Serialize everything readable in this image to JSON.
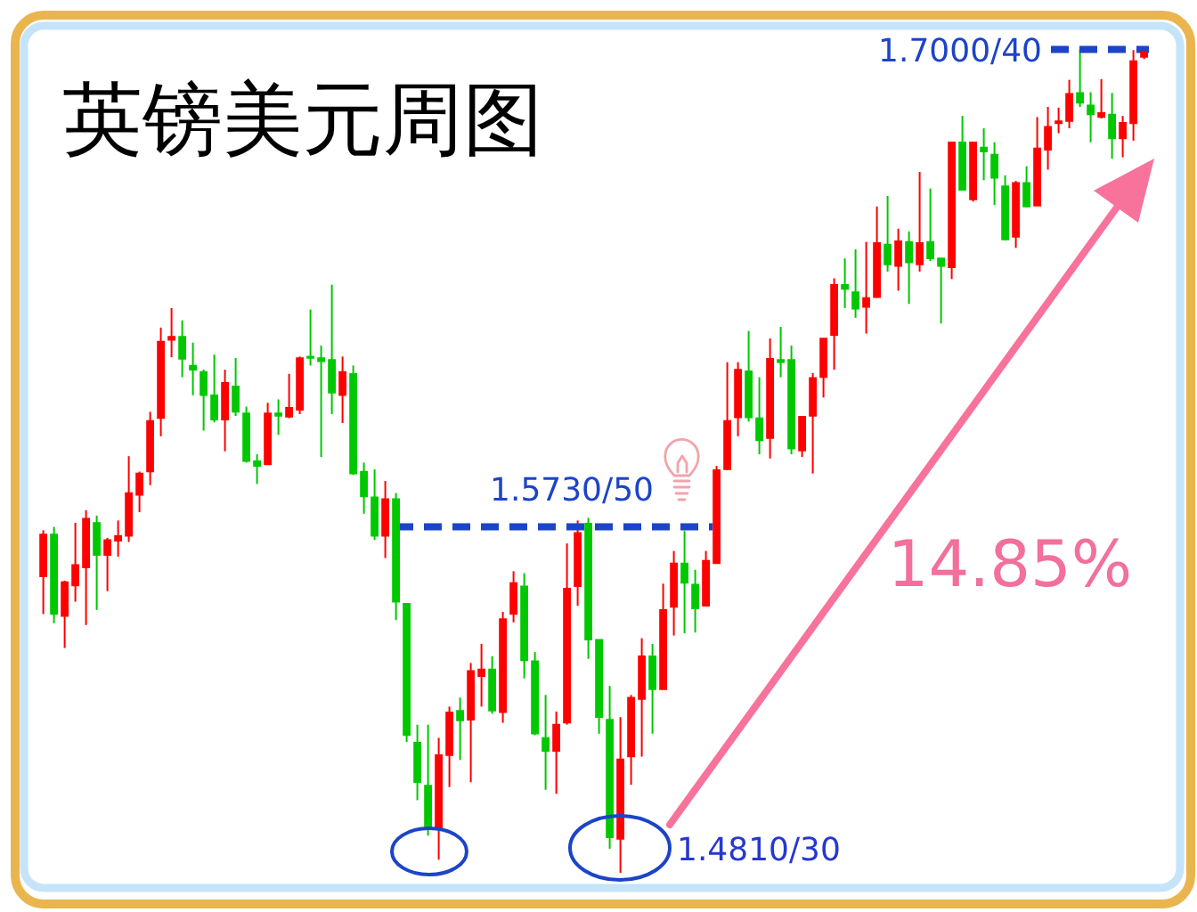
{
  "chart_data": {
    "type": "candlestick",
    "title": "英镑美元周图",
    "categories": [
      null,
      null,
      null,
      null,
      null,
      null,
      null,
      null,
      null,
      null,
      null,
      null,
      null,
      null,
      null,
      null,
      null,
      null,
      null,
      null,
      null,
      null,
      null,
      null,
      null,
      null,
      null,
      null,
      null,
      null,
      null,
      null,
      null,
      null,
      null,
      null,
      null,
      null,
      null,
      null,
      null,
      null,
      null,
      null,
      null,
      null,
      null,
      null,
      null,
      null,
      null,
      null,
      null,
      null,
      null,
      null,
      null,
      null,
      null,
      null,
      null,
      null,
      null,
      null,
      null,
      null,
      null,
      null,
      null,
      null,
      null,
      null,
      null,
      null,
      null,
      null,
      null,
      null,
      null,
      null,
      null,
      null,
      null,
      null,
      null,
      null,
      null,
      null,
      null,
      null,
      null,
      null,
      null,
      null,
      null,
      null,
      null,
      null,
      null,
      null,
      null,
      null,
      null,
      null
    ],
    "ohlc": [
      [
        1.5598,
        1.5721,
        1.5498,
        1.571
      ],
      [
        1.571,
        1.573,
        1.5474,
        1.5498
      ],
      [
        1.5493,
        1.5587,
        1.5408,
        1.5583
      ],
      [
        1.5574,
        1.5741,
        1.5531,
        1.5629
      ],
      [
        1.5622,
        1.5774,
        1.5469,
        1.5752
      ],
      [
        1.5741,
        1.576,
        1.5509,
        1.5655
      ],
      [
        1.5655,
        1.5701,
        1.5559,
        1.5695
      ],
      [
        1.5693,
        1.5747,
        1.5651,
        1.5706
      ],
      [
        1.5706,
        1.5918,
        1.569,
        1.582
      ],
      [
        1.5815,
        1.5877,
        1.5769,
        1.5872
      ],
      [
        1.5877,
        1.6036,
        1.5841,
        1.6012
      ],
      [
        1.6019,
        1.626,
        1.5971,
        1.6223
      ],
      [
        1.6227,
        1.6312,
        1.6181,
        1.6236
      ],
      [
        1.6236,
        1.6279,
        1.6128,
        1.6177
      ],
      [
        1.6159,
        1.622,
        1.608,
        1.6148
      ],
      [
        1.6142,
        1.6148,
        1.5986,
        1.608
      ],
      [
        1.608,
        1.6188,
        1.6008,
        1.6015
      ],
      [
        1.6015,
        1.6148,
        1.5931,
        1.6113
      ],
      [
        1.6104,
        1.6179,
        1.6025,
        1.6036
      ],
      [
        1.6032,
        1.605,
        1.5901,
        1.5905
      ],
      [
        1.5905,
        1.5923,
        1.5844,
        1.5892
      ],
      [
        1.5896,
        1.606,
        1.5896,
        1.6032
      ],
      [
        1.6032,
        1.6069,
        1.5975,
        1.6025
      ],
      [
        1.6023,
        1.6137,
        1.6019,
        1.6047
      ],
      [
        1.6041,
        1.6183,
        1.603,
        1.6179
      ],
      [
        1.6183,
        1.6308,
        1.6159,
        1.6179
      ],
      [
        1.6179,
        1.6212,
        1.5916,
        1.617
      ],
      [
        1.6174,
        1.6374,
        1.603,
        1.6087
      ],
      [
        1.608,
        1.6183,
        1.6006,
        1.6142
      ],
      [
        1.6137,
        1.6159,
        1.5868,
        1.5872
      ],
      [
        1.5877,
        1.5901,
        1.5765,
        1.5811
      ],
      [
        1.5809,
        1.5883,
        1.5695,
        1.5706
      ],
      [
        1.5706,
        1.5852,
        1.5647,
        1.5804
      ],
      [
        1.5804,
        1.582,
        1.5482,
        1.5531
      ],
      [
        1.5526,
        1.5526,
        1.5158,
        1.5176
      ],
      [
        1.5156,
        1.5204,
        1.5003,
        1.5051
      ],
      [
        1.5042,
        1.5204,
        1.4909,
        1.4933
      ],
      [
        1.4926,
        1.5169,
        1.4845,
        1.5123
      ],
      [
        1.5123,
        1.5252,
        1.5038,
        1.5237
      ],
      [
        1.5241,
        1.5276,
        1.511,
        1.5215
      ],
      [
        1.5217,
        1.5368,
        1.5051,
        1.5347
      ],
      [
        1.5333,
        1.5419,
        1.5252,
        1.5351
      ],
      [
        1.5351,
        1.5386,
        1.5233,
        1.5241
      ],
      [
        1.5237,
        1.5504,
        1.5209,
        1.5485
      ],
      [
        1.5498,
        1.5612,
        1.5476,
        1.5581
      ],
      [
        1.5572,
        1.5607,
        1.5327,
        1.5375
      ],
      [
        1.5373,
        1.5397,
        1.5176,
        1.518
      ],
      [
        1.5169,
        1.5283,
        1.5031,
        1.5134
      ],
      [
        1.5134,
        1.5239,
        1.502,
        1.5204
      ],
      [
        1.5209,
        1.5686,
        1.5204,
        1.5566
      ],
      [
        1.5572,
        1.5747,
        1.552,
        1.5714
      ],
      [
        1.5739,
        1.5754,
        1.5379,
        1.543
      ],
      [
        1.543,
        1.543,
        1.518,
        1.5224
      ],
      [
        1.5217,
        1.5307,
        1.4874,
        1.4904
      ],
      [
        1.49,
        1.5224,
        1.481,
        1.5112
      ],
      [
        1.5119,
        1.5283,
        1.5044,
        1.5276
      ],
      [
        1.5272,
        1.5434,
        1.5119,
        1.5386
      ],
      [
        1.5386,
        1.5419,
        1.518,
        1.5298
      ],
      [
        1.5298,
        1.5579,
        1.5298,
        1.5509
      ],
      [
        1.5517,
        1.5666,
        1.5441,
        1.5633
      ],
      [
        1.5633,
        1.5719,
        1.5447,
        1.5581
      ],
      [
        1.5577,
        1.5616,
        1.5449,
        1.5513
      ],
      [
        1.552,
        1.5666,
        1.552,
        1.564
      ],
      [
        1.5633,
        1.5892,
        1.5633,
        1.5881
      ],
      [
        1.5883,
        1.6168,
        1.5881,
        1.6012
      ],
      [
        1.6021,
        1.6168,
        1.5971,
        1.6148
      ],
      [
        1.6144,
        1.6251,
        1.601,
        1.6021
      ],
      [
        1.6019,
        1.6128,
        1.5923,
        1.596
      ],
      [
        1.5966,
        1.6231,
        1.5912,
        1.6177
      ],
      [
        1.6174,
        1.6262,
        1.6128,
        1.6168
      ],
      [
        1.6174,
        1.6212,
        1.5923,
        1.5938
      ],
      [
        1.5933,
        1.6025,
        1.5916,
        1.6023
      ],
      [
        1.6025,
        1.6139,
        1.5872,
        1.6126
      ],
      [
        1.6128,
        1.6231,
        1.6074,
        1.6231
      ],
      [
        1.624,
        1.6391,
        1.6148,
        1.6374
      ],
      [
        1.6374,
        1.6444,
        1.6312,
        1.6363
      ],
      [
        1.6354,
        1.6468,
        1.6286,
        1.631
      ],
      [
        1.6315,
        1.6488,
        1.6244,
        1.6339
      ],
      [
        1.6341,
        1.6582,
        1.6339,
        1.6485
      ],
      [
        1.6481,
        1.661,
        1.6409,
        1.6428
      ],
      [
        1.6424,
        1.6523,
        1.6358,
        1.649
      ],
      [
        1.6488,
        1.6516,
        1.6323,
        1.6433
      ],
      [
        1.6428,
        1.6674,
        1.6409,
        1.6485
      ],
      [
        1.6488,
        1.663,
        1.6437,
        1.6444
      ],
      [
        1.6444,
        1.6444,
        1.6271,
        1.6424
      ],
      [
        1.642,
        1.6753,
        1.6389,
        1.6753
      ],
      [
        1.6753,
        1.6823,
        1.6626,
        1.6626
      ],
      [
        1.6601,
        1.6753,
        1.6595,
        1.6753
      ],
      [
        1.6739,
        1.679,
        1.6652,
        1.6728
      ],
      [
        1.672,
        1.6753,
        1.6586,
        1.6658
      ],
      [
        1.6636,
        1.6665,
        1.6492,
        1.6494
      ],
      [
        1.6501,
        1.665,
        1.6472,
        1.6645
      ],
      [
        1.6645,
        1.6689,
        1.658,
        1.6582
      ],
      [
        1.6584,
        1.682,
        1.6584,
        1.6737
      ],
      [
        1.6733,
        1.6847,
        1.668,
        1.6794
      ],
      [
        1.6803,
        1.6845,
        1.6777,
        1.6809
      ],
      [
        1.6809,
        1.6919,
        1.679,
        1.6882
      ],
      [
        1.6884,
        1.7,
        1.6847,
        1.6858
      ],
      [
        1.6851,
        1.6886,
        1.6753,
        1.6827
      ],
      [
        1.682,
        1.6921,
        1.6816,
        1.6831
      ],
      [
        1.6827,
        1.6884,
        1.6709,
        1.6763
      ],
      [
        1.6763,
        1.6823,
        1.6713,
        1.6805
      ],
      [
        1.6803,
        1.6998,
        1.6757,
        1.6969
      ],
      [
        1.698,
        1.7,
        1.6974,
        1.6993
      ]
    ],
    "colors": [
      "#ff0000",
      "#00c800",
      "#ff0000",
      "#ff0000",
      "#ff0000",
      "#00c800",
      "#ff0000",
      "#ff0000",
      "#ff0000",
      "#ff0000",
      "#ff0000",
      "#ff0000",
      "#ff0000",
      "#00c800",
      "#00c800",
      "#00c800",
      "#00c800",
      "#ff0000",
      "#00c800",
      "#00c800",
      "#00c800",
      "#ff0000",
      "#00c800",
      "#ff0000",
      "#ff0000",
      "#00c800",
      "#00c800",
      "#00c800",
      "#ff0000",
      "#00c800",
      "#00c800",
      "#00c800",
      "#ff0000",
      "#00c800",
      "#00c800",
      "#00c800",
      "#00c800",
      "#ff0000",
      "#ff0000",
      "#00c800",
      "#ff0000",
      "#ff0000",
      "#00c800",
      "#ff0000",
      "#ff0000",
      "#00c800",
      "#00c800",
      "#00c800",
      "#ff0000",
      "#ff0000",
      "#ff0000",
      "#00c800",
      "#00c800",
      "#00c800",
      "#ff0000",
      "#ff0000",
      "#ff0000",
      "#00c800",
      "#ff0000",
      "#ff0000",
      "#00c800",
      "#00c800",
      "#ff0000",
      "#ff0000",
      "#ff0000",
      "#ff0000",
      "#00c800",
      "#00c800",
      "#ff0000",
      "#00c800",
      "#00c800",
      "#ff0000",
      "#ff0000",
      "#ff0000",
      "#ff0000",
      "#00c800",
      "#00c800",
      "#ff0000",
      "#ff0000",
      "#00c800",
      "#ff0000",
      "#00c800",
      "#ff0000",
      "#00c800",
      "#00c800",
      "#ff0000",
      "#00c800",
      "#ff0000",
      "#00c800",
      "#00c800",
      "#00c800",
      "#ff0000",
      "#00c800",
      "#ff0000",
      "#ff0000",
      "#ff0000",
      "#ff0000",
      "#00c800",
      "#00c800",
      "#ff0000",
      "#00c800",
      "#ff0000",
      "#ff0000",
      "#ff0000"
    ],
    "ref_lines": [
      {
        "axis": "y",
        "value": 1.573,
        "label": "1.5730/50",
        "color": "#1c44c8",
        "line_style": "dashed"
      },
      {
        "axis": "y",
        "value": 1.7,
        "label": "1.7000/40",
        "color": "#1c44c8",
        "line_style": "dashed"
      }
    ],
    "annotations": [
      "1.4810/30",
      "14.85%"
    ]
  }
}
